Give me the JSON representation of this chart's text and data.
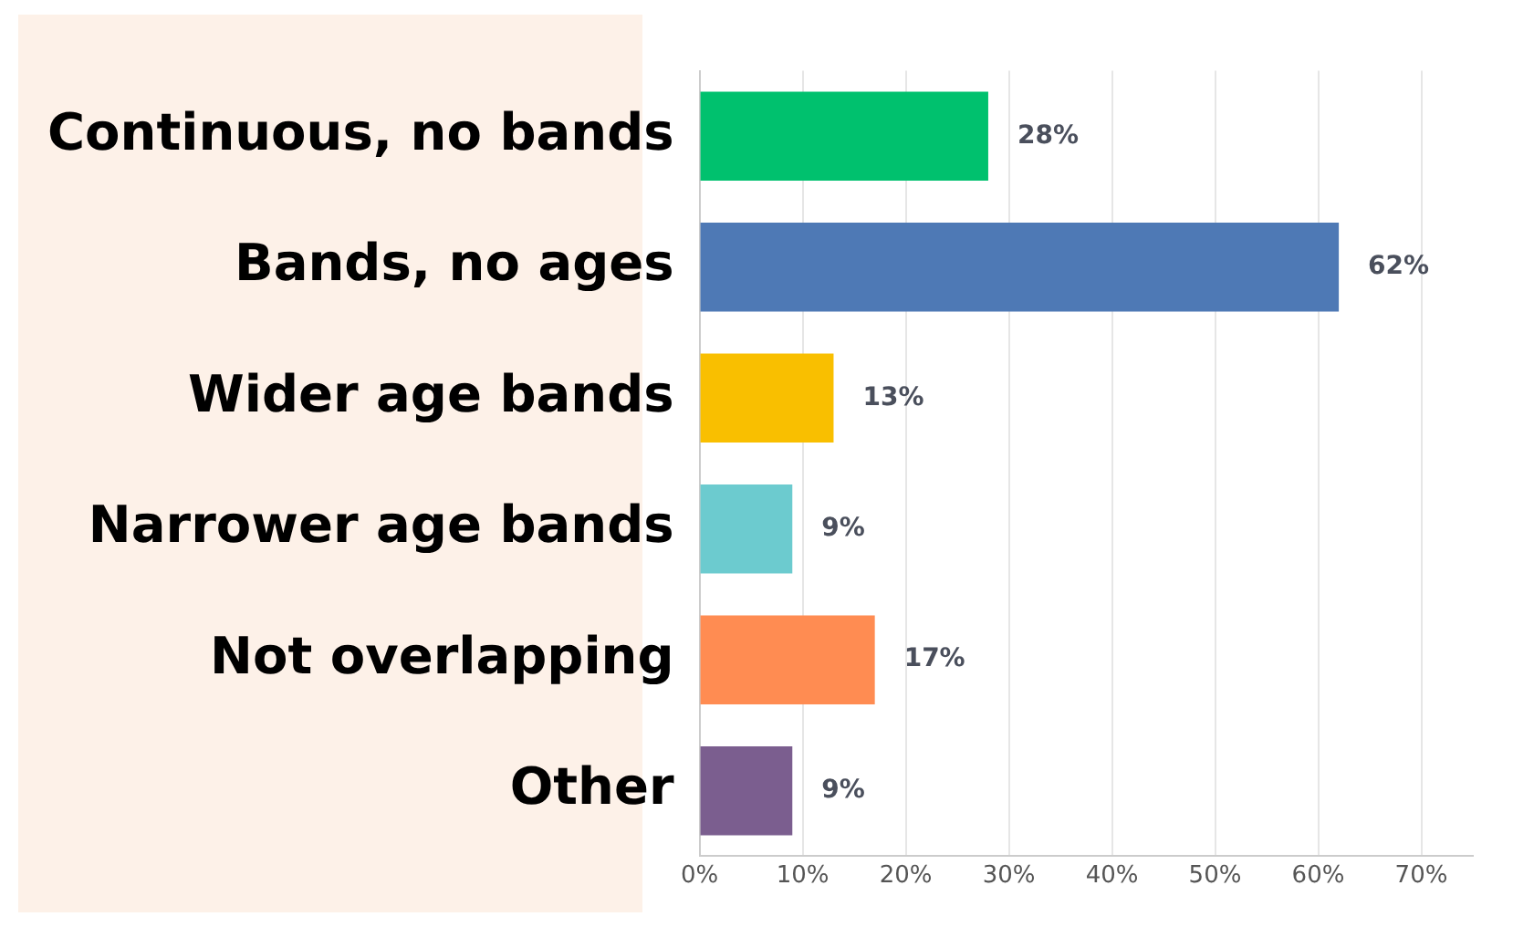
{
  "chart_data": {
    "type": "bar",
    "orientation": "horizontal",
    "categories": [
      "Continuous, no bands",
      "Bands, no ages",
      "Wider age bands",
      "Narrower age bands",
      "Not overlapping",
      "Other"
    ],
    "values": [
      28,
      62,
      13,
      9,
      17,
      9
    ],
    "colors": [
      "#00c16e",
      "#4e79b5",
      "#f9bf00",
      "#6ccbcf",
      "#ff8c52",
      "#7b5e8f"
    ],
    "value_labels": [
      "28%",
      "62%",
      "13%",
      "9%",
      "17%",
      "9%"
    ],
    "xlim": [
      0,
      75
    ],
    "xticks": [
      {
        "value": 0,
        "label": "0%"
      },
      {
        "value": 10,
        "label": "10%"
      },
      {
        "value": 20,
        "label": "20%"
      },
      {
        "value": 30,
        "label": "30%"
      },
      {
        "value": 40,
        "label": "40%"
      },
      {
        "value": 50,
        "label": "50%"
      },
      {
        "value": 60,
        "label": "60%"
      },
      {
        "value": 70,
        "label": "70%"
      }
    ],
    "grid": "x",
    "legend": false
  }
}
